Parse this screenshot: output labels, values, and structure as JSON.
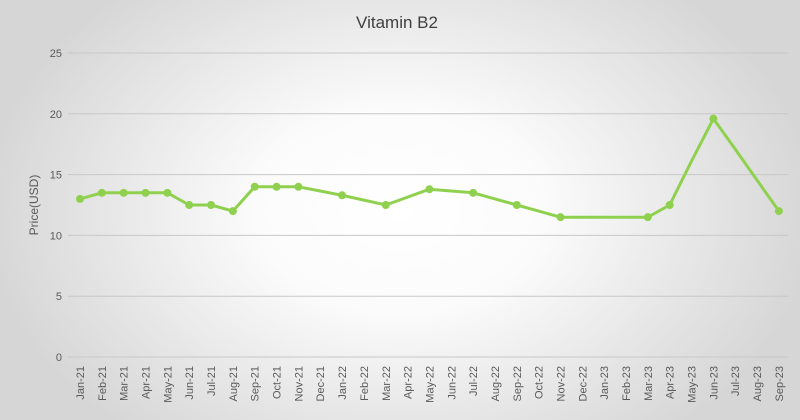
{
  "chart_data": {
    "type": "line",
    "title": "Vitamin B2",
    "xlabel": "",
    "ylabel": "Price(USD)",
    "ylim": [
      0,
      25
    ],
    "yticks": [
      0,
      5,
      10,
      15,
      20,
      25
    ],
    "grid": true,
    "categories": [
      "Jan-21",
      "Feb-21",
      "Mar-21",
      "Apr-21",
      "May-21",
      "Jun-21",
      "Jul-21",
      "Aug-21",
      "Sep-21",
      "Oct-21",
      "Nov-21",
      "Dec-21",
      "Jan-22",
      "Feb-22",
      "Mar-22",
      "Apr-22",
      "May-22",
      "Jun-22",
      "Jul-22",
      "Aug-22",
      "Sep-22",
      "Oct-22",
      "Nov-22",
      "Dec-22",
      "Jan-23",
      "Feb-23",
      "Mar-23",
      "Apr-23",
      "May-23",
      "Jun-23",
      "Jul-23",
      "Aug-23",
      "Sep-23"
    ],
    "series": [
      {
        "name": "Vitamin B2",
        "color": "#8fd14f",
        "values": [
          13.0,
          13.5,
          13.5,
          13.5,
          13.5,
          12.5,
          12.5,
          12.0,
          14.0,
          14.0,
          14.0,
          13.65,
          13.3,
          12.9,
          12.5,
          13.15,
          13.8,
          13.65,
          13.5,
          13.0,
          12.5,
          12.0,
          11.5,
          11.5,
          11.5,
          11.5,
          11.5,
          12.5,
          16.1,
          19.6,
          17.1,
          14.55,
          12.0
        ],
        "markers": [
          true,
          true,
          true,
          true,
          true,
          true,
          true,
          true,
          true,
          true,
          true,
          false,
          true,
          false,
          true,
          false,
          true,
          false,
          true,
          false,
          true,
          false,
          true,
          false,
          false,
          false,
          true,
          true,
          false,
          true,
          false,
          false,
          true
        ]
      }
    ]
  }
}
